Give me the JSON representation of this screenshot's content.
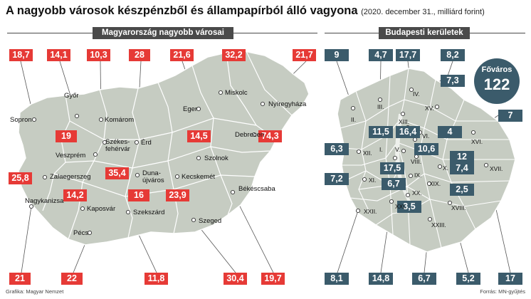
{
  "title": "A nagyobb városok készpénzből és állampapírból álló vagyona",
  "subtitle": "(2020. december 31., milliárd forint)",
  "left_header": "Magyarország nagyobb városai",
  "right_header": "Budapesti kerületek",
  "fovaros": {
    "label": "Főváros",
    "value": "122"
  },
  "credit": "Grafika: Magyar Nemzet",
  "source": "Forrás: MN-gyűjtés",
  "colors": {
    "red": "#e63a36",
    "blue": "#3b5b6b",
    "map": "#c6ccc2",
    "border": "#ffffff"
  },
  "cities": [
    {
      "name": "Sopron",
      "value": "18,7"
    },
    {
      "name": "Győr",
      "value": "14,1"
    },
    {
      "name": "Komárom",
      "value": "10,3"
    },
    {
      "name": "Érd",
      "value": "28"
    },
    {
      "name": "Eger",
      "value": "21,6"
    },
    {
      "name": "Miskolc",
      "value": "32,2"
    },
    {
      "name": "Nyíregyháza",
      "value": "21,7"
    },
    {
      "name": "Székes-\nfehérvár",
      "value": "19"
    },
    {
      "name": "Szolnok",
      "value": "14,5"
    },
    {
      "name": "Debrecen",
      "value": "74,3"
    },
    {
      "name": "Veszprém",
      "value": "35,4"
    },
    {
      "name": "Zalaegerszeg",
      "value": "25,8"
    },
    {
      "name": "Duna-\nújváros",
      "value": "16"
    },
    {
      "name": "Kecskemét",
      "value": "23,9"
    },
    {
      "name": "Kaposvár",
      "value": "14,2"
    },
    {
      "name": "Nagykanizsa",
      "value": "21"
    },
    {
      "name": "Pécs",
      "value": "22"
    },
    {
      "name": "Szekszárd",
      "value": "11,8"
    },
    {
      "name": "Szeged",
      "value": "30,4"
    },
    {
      "name": "Békéscsaba",
      "value": "19,7"
    }
  ],
  "districts": [
    {
      "name": "II.",
      "value": "9"
    },
    {
      "name": "III.",
      "value": "4,7"
    },
    {
      "name": "IV.",
      "value": "17,7"
    },
    {
      "name": "XV.",
      "value": "8,2"
    },
    {
      "name": "XIII.",
      "value": "7,3"
    },
    {
      "name": "XVI.",
      "value": "7"
    },
    {
      "name": "XIV.",
      "value": "11,5"
    },
    {
      "name": "VI.",
      "value": "16,4"
    },
    {
      "name": "VII.",
      "value": "4"
    },
    {
      "name": "XII.",
      "value": "6,3"
    },
    {
      "name": "V.",
      "value": "10,6"
    },
    {
      "name": "I.",
      "value": "12"
    },
    {
      "name": "VIII.",
      "value": "17,5"
    },
    {
      "name": "X.",
      "value": "7,4"
    },
    {
      "name": "XI.",
      "value": "7,2"
    },
    {
      "name": "IX.",
      "value": "6,7"
    },
    {
      "name": "XIX.",
      "value": "2,5"
    },
    {
      "name": "XX.",
      "value": "3,5"
    },
    {
      "name": "XXII.",
      "value": "8,1"
    },
    {
      "name": "XXI.",
      "value": "14,8"
    },
    {
      "name": "XXIII.",
      "value": "6,7"
    },
    {
      "name": "XVIII.",
      "value": "5,2"
    },
    {
      "name": "XVII.",
      "value": "17"
    }
  ]
}
